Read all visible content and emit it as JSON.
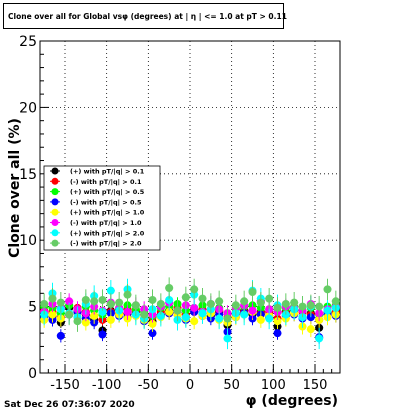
{
  "title": "Clone  over all for Global vsφ (degrees) at |  η | <= 1.0 at pT > 0.11",
  "footer": "Sat Dec 26 07:36:07 2020",
  "chart_data": {
    "type": "scatter",
    "title": "Clone  over all for Global vsφ (degrees) at |  η | <= 1.0 at pT > 0.11",
    "xlabel": "φ (degrees)",
    "ylabel": "Clone  over all (%)",
    "xlim": [
      -180,
      180
    ],
    "ylim": [
      0,
      25
    ],
    "xticks": [
      "-150",
      "-100",
      "-50",
      "0",
      "50",
      "100",
      "150"
    ],
    "yticks": [
      "0",
      "5",
      "10",
      "15",
      "20",
      "25"
    ],
    "grid": true,
    "legend_position": "left-middle",
    "x": [
      -175,
      -165,
      -155,
      -145,
      -135,
      -125,
      -115,
      -105,
      -95,
      -85,
      -75,
      -65,
      -55,
      -45,
      -35,
      -25,
      -15,
      -5,
      5,
      15,
      25,
      35,
      45,
      55,
      65,
      75,
      85,
      95,
      105,
      115,
      125,
      135,
      145,
      155,
      165,
      175
    ],
    "series": [
      {
        "name": "(+) with pT/|q| > 0.1",
        "color": "#000000",
        "values": [
          4.5,
          4.3,
          3.8,
          4.9,
          4.6,
          4.4,
          4.0,
          3.2,
          4.7,
          4.8,
          4.5,
          4.6,
          4.1,
          3.9,
          4.4,
          4.7,
          4.6,
          4.2,
          4.8,
          4.5,
          4.3,
          4.6,
          3.6,
          4.5,
          4.7,
          4.4,
          4.6,
          4.3,
          3.5,
          4.6,
          4.7,
          4.2,
          4.5,
          3.4,
          4.6,
          4.5
        ],
        "errors": [
          0.4,
          0.4,
          0.4,
          0.4,
          0.4,
          0.4,
          0.4,
          0.4,
          0.4,
          0.4,
          0.4,
          0.4,
          0.4,
          0.4,
          0.4,
          0.4,
          0.4,
          0.4,
          0.4,
          0.4,
          0.4,
          0.4,
          0.4,
          0.4,
          0.4,
          0.4,
          0.4,
          0.4,
          0.4,
          0.4,
          0.4,
          0.4,
          0.4,
          0.4,
          0.4,
          0.4
        ]
      },
      {
        "name": "(-) with pT/|q| > 0.1",
        "color": "#ff0000",
        "values": [
          4.7,
          4.6,
          4.2,
          4.4,
          4.9,
          4.6,
          4.3,
          4.0,
          4.6,
          4.5,
          4.8,
          4.7,
          4.4,
          4.2,
          4.6,
          4.5,
          4.9,
          4.4,
          4.6,
          4.8,
          4.5,
          4.7,
          4.2,
          4.4,
          4.6,
          4.7,
          4.5,
          4.6,
          4.1,
          4.5,
          4.8,
          4.6,
          4.4,
          4.0,
          4.7,
          4.6
        ],
        "errors": [
          0.4,
          0.4,
          0.4,
          0.4,
          0.4,
          0.4,
          0.4,
          0.4,
          0.4,
          0.4,
          0.4,
          0.4,
          0.4,
          0.4,
          0.4,
          0.4,
          0.4,
          0.4,
          0.4,
          0.4,
          0.4,
          0.4,
          0.4,
          0.4,
          0.4,
          0.4,
          0.4,
          0.4,
          0.4,
          0.4,
          0.4,
          0.4,
          0.4,
          0.4,
          0.4,
          0.4
        ]
      },
      {
        "name": "(+) with pT/|q| > 0.5",
        "color": "#00ff00",
        "values": [
          5.0,
          4.9,
          4.5,
          5.1,
          4.8,
          5.0,
          4.7,
          4.4,
          5.2,
          4.9,
          5.1,
          4.8,
          4.6,
          4.3,
          4.9,
          5.0,
          5.2,
          4.7,
          4.9,
          5.1,
          4.8,
          4.9,
          4.5,
          4.8,
          5.0,
          5.1,
          4.9,
          4.8,
          4.6,
          4.9,
          5.0,
          4.7,
          4.9,
          4.4,
          5.0,
          5.1
        ],
        "errors": [
          0.5,
          0.5,
          0.5,
          0.5,
          0.5,
          0.5,
          0.5,
          0.5,
          0.5,
          0.5,
          0.5,
          0.5,
          0.5,
          0.5,
          0.5,
          0.5,
          0.5,
          0.5,
          0.5,
          0.5,
          0.5,
          0.5,
          0.5,
          0.5,
          0.5,
          0.5,
          0.5,
          0.5,
          0.5,
          0.5,
          0.5,
          0.5,
          0.5,
          0.5,
          0.5,
          0.5
        ]
      },
      {
        "name": "(-) with pT/|q| > 0.5",
        "color": "#0000ff",
        "values": [
          4.2,
          4.0,
          2.8,
          4.4,
          4.6,
          4.1,
          3.8,
          2.9,
          4.5,
          4.3,
          4.2,
          4.4,
          3.9,
          3.0,
          4.3,
          4.5,
          4.4,
          4.0,
          4.6,
          4.3,
          4.1,
          4.4,
          3.1,
          4.2,
          4.5,
          4.1,
          4.4,
          4.2,
          3.0,
          4.3,
          4.4,
          4.1,
          4.2,
          2.7,
          4.4,
          4.3
        ],
        "errors": [
          0.5,
          0.5,
          0.5,
          0.5,
          0.5,
          0.5,
          0.5,
          0.5,
          0.5,
          0.5,
          0.5,
          0.5,
          0.5,
          0.5,
          0.5,
          0.5,
          0.5,
          0.5,
          0.5,
          0.5,
          0.5,
          0.5,
          0.5,
          0.5,
          0.5,
          0.5,
          0.5,
          0.5,
          0.5,
          0.5,
          0.5,
          0.5,
          0.5,
          0.5,
          0.5,
          0.5
        ]
      },
      {
        "name": "(+) with pT/|q| > 1.0",
        "color": "#ffff00",
        "values": [
          4.0,
          4.4,
          4.1,
          4.5,
          4.2,
          3.8,
          4.3,
          4.6,
          4.0,
          4.4,
          4.1,
          4.3,
          4.0,
          3.7,
          4.2,
          4.6,
          4.4,
          4.1,
          3.9,
          4.3,
          4.5,
          4.0,
          3.8,
          4.2,
          4.4,
          4.6,
          4.0,
          4.3,
          3.9,
          4.1,
          4.5,
          3.5,
          3.3,
          4.0,
          4.2,
          4.4
        ],
        "errors": [
          0.6,
          0.6,
          0.6,
          0.6,
          0.6,
          0.6,
          0.6,
          0.6,
          0.6,
          0.6,
          0.6,
          0.6,
          0.6,
          0.6,
          0.6,
          0.6,
          0.6,
          0.6,
          0.6,
          0.6,
          0.6,
          0.6,
          0.6,
          0.6,
          0.6,
          0.6,
          0.6,
          0.6,
          0.6,
          0.6,
          0.6,
          0.6,
          0.6,
          0.6,
          0.6,
          0.6
        ]
      },
      {
        "name": "(-) with pT/|q| > 1.0",
        "color": "#ff00ff",
        "values": [
          4.6,
          5.2,
          4.9,
          5.4,
          4.8,
          4.5,
          5.0,
          4.7,
          5.3,
          4.9,
          4.6,
          5.1,
          4.8,
          4.4,
          5.0,
          5.3,
          4.7,
          5.1,
          4.9,
          4.6,
          5.2,
          4.8,
          4.5,
          4.9,
          5.1,
          4.7,
          5.4,
          4.8,
          4.6,
          5.0,
          4.9,
          4.7,
          5.2,
          4.5,
          4.8,
          5.0
        ],
        "errors": [
          0.6,
          0.6,
          0.6,
          0.6,
          0.6,
          0.6,
          0.6,
          0.6,
          0.6,
          0.6,
          0.6,
          0.6,
          0.6,
          0.6,
          0.6,
          0.6,
          0.6,
          0.6,
          0.6,
          0.6,
          0.6,
          0.6,
          0.6,
          0.6,
          0.6,
          0.6,
          0.6,
          0.6,
          0.6,
          0.6,
          0.6,
          0.6,
          0.6,
          0.6,
          0.6,
          0.6
        ]
      },
      {
        "name": "(+) with pT/|q| > 2.0",
        "color": "#00ffff",
        "values": [
          4.4,
          6.0,
          4.8,
          4.5,
          4.2,
          5.2,
          5.8,
          4.6,
          6.2,
          4.7,
          6.3,
          4.4,
          4.1,
          4.8,
          4.3,
          5.5,
          4.0,
          4.2,
          5.9,
          4.5,
          4.8,
          4.1,
          2.6,
          4.5,
          4.4,
          6.2,
          5.6,
          4.1,
          5.1,
          4.4,
          4.8,
          4.2,
          5.0,
          2.6,
          4.7,
          4.9
        ],
        "errors": [
          0.8,
          0.8,
          0.8,
          0.8,
          0.8,
          0.8,
          0.8,
          0.8,
          0.8,
          0.8,
          0.8,
          0.8,
          0.8,
          0.8,
          0.8,
          0.8,
          0.8,
          0.8,
          0.8,
          0.8,
          0.8,
          0.8,
          0.8,
          0.8,
          0.8,
          0.8,
          0.8,
          0.8,
          0.8,
          0.8,
          0.8,
          0.8,
          0.8,
          0.8,
          0.8,
          0.8
        ]
      },
      {
        "name": "(-) with pT/|q| > 2.0",
        "color": "#66cc66",
        "values": [
          5.2,
          5.6,
          5.3,
          4.4,
          3.9,
          5.5,
          5.4,
          5.5,
          5.2,
          5.3,
          5.9,
          5.1,
          4.4,
          5.5,
          5.2,
          6.4,
          4.7,
          5.7,
          6.3,
          5.6,
          5.2,
          5.4,
          4.1,
          5.1,
          5.4,
          6.1,
          5.3,
          5.6,
          4.9,
          5.2,
          5.3,
          5.0,
          5.1,
          5.0,
          6.3,
          5.4
        ],
        "errors": [
          0.8,
          0.8,
          0.8,
          0.8,
          0.8,
          0.8,
          0.8,
          0.8,
          0.8,
          0.8,
          0.8,
          0.8,
          0.8,
          0.8,
          0.8,
          0.8,
          0.8,
          0.8,
          0.8,
          0.8,
          0.8,
          0.8,
          0.8,
          0.8,
          0.8,
          0.8,
          0.8,
          0.8,
          0.8,
          0.8,
          0.8,
          0.8,
          0.8,
          0.8,
          0.8,
          0.8
        ]
      }
    ]
  }
}
